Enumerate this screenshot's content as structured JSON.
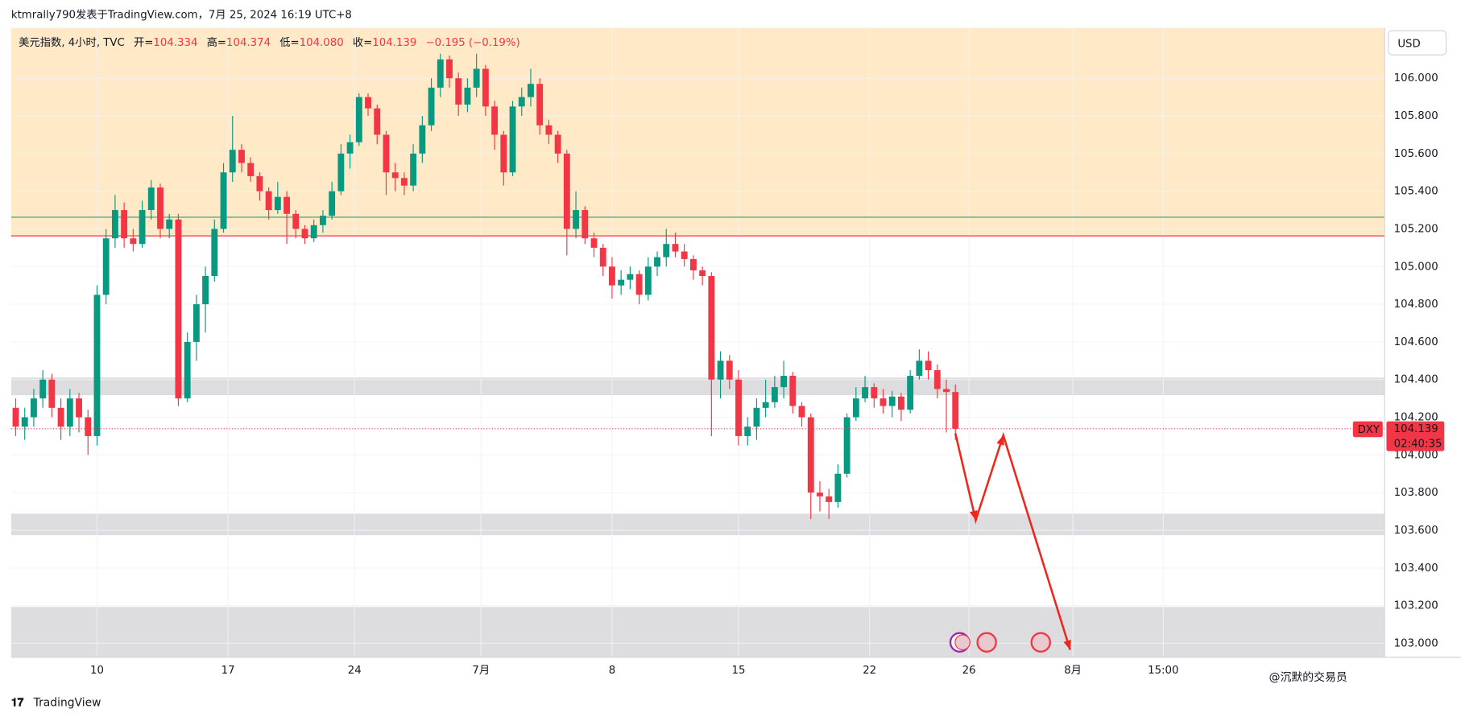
{
  "header": {
    "byline": "ktmrally790发表于TradingView.com，7月 25, 2024 16:19 UTC+8",
    "symbol_info": "美元指数, 4小时, TVC",
    "open_label": "开=",
    "open": "104.334",
    "high_label": "高=",
    "high": "104.374",
    "low_label": "低=",
    "low": "104.080",
    "close_label": "收=",
    "close": "104.139",
    "change": "−0.195 (−0.19%)"
  },
  "footer": {
    "brand": "TradingView",
    "watermark": "@沉默的交易员"
  },
  "chart_data": {
    "type": "candlestick",
    "currency": "USD",
    "up_color": "#089981",
    "down_color": "#f23645",
    "grid": true,
    "xlim": [
      0,
      152
    ],
    "xticks": [
      {
        "value": 9.5,
        "label": "10"
      },
      {
        "value": 24,
        "label": "17"
      },
      {
        "value": 38,
        "label": "24"
      },
      {
        "value": 52,
        "label": "7月"
      },
      {
        "value": 66.5,
        "label": "8"
      },
      {
        "value": 80.5,
        "label": "15"
      },
      {
        "value": 95,
        "label": "22"
      },
      {
        "value": 106,
        "label": "26"
      },
      {
        "value": 117.5,
        "label": "8月"
      },
      {
        "value": 127.5,
        "label": "15:00"
      }
    ],
    "ylim": [
      102.926,
      106.267
    ],
    "yticks": [
      {
        "value": 103,
        "label": "103.000"
      },
      {
        "value": 103.2,
        "label": "103.200"
      },
      {
        "value": 103.4,
        "label": "103.400"
      },
      {
        "value": 103.6,
        "label": "103.600"
      },
      {
        "value": 103.8,
        "label": "103.800"
      },
      {
        "value": 104,
        "label": "104.000"
      },
      {
        "value": 104.2,
        "label": "104.200"
      },
      {
        "value": 104.4,
        "label": "104.400"
      },
      {
        "value": 104.6,
        "label": "104.600"
      },
      {
        "value": 104.8,
        "label": "104.800"
      },
      {
        "value": 105,
        "label": "105.000"
      },
      {
        "value": 105.2,
        "label": "105.200"
      },
      {
        "value": 105.4,
        "label": "105.400"
      },
      {
        "value": 105.6,
        "label": "105.600"
      },
      {
        "value": 105.8,
        "label": "105.800"
      },
      {
        "value": 106,
        "label": "106.000"
      }
    ],
    "zones": [
      {
        "from": 105.163,
        "to": 106.267,
        "color": "#ffe9c6"
      },
      {
        "from": 104.317,
        "to": 104.411,
        "color": "#dddde0"
      },
      {
        "from": 103.574,
        "to": 103.688,
        "color": "#dddde0"
      },
      {
        "from": 102.926,
        "to": 103.193,
        "color": "#dddde0"
      }
    ],
    "hlines": [
      {
        "value": 105.262,
        "color": "#2e9e6a"
      },
      {
        "value": 105.163,
        "color": "#f23645"
      }
    ],
    "arrow": {
      "color": "#f0261b",
      "points": [
        [
          104.5,
          104.114
        ],
        [
          106.75,
          103.653
        ],
        [
          109.8,
          104.104
        ],
        [
          117.2,
          102.965
        ]
      ]
    },
    "price_tag": {
      "symbol": "DXY",
      "price": "104.139",
      "countdown": "02:40:35"
    },
    "candles": [
      [
        104.25,
        104.3,
        104.1,
        104.15
      ],
      [
        104.15,
        104.25,
        104.08,
        104.2
      ],
      [
        104.2,
        104.35,
        104.15,
        104.3
      ],
      [
        104.3,
        104.45,
        104.25,
        104.4
      ],
      [
        104.4,
        104.43,
        104.2,
        104.25
      ],
      [
        104.25,
        104.3,
        104.08,
        104.15
      ],
      [
        104.15,
        104.35,
        104.1,
        104.3
      ],
      [
        104.3,
        104.33,
        104.12,
        104.2
      ],
      [
        104.2,
        104.24,
        104.0,
        104.1
      ],
      [
        104.1,
        104.9,
        104.05,
        104.85
      ],
      [
        104.85,
        105.2,
        104.8,
        105.15
      ],
      [
        105.15,
        105.38,
        105.1,
        105.3
      ],
      [
        105.3,
        105.34,
        105.1,
        105.15
      ],
      [
        105.15,
        105.2,
        105.08,
        105.12
      ],
      [
        105.12,
        105.35,
        105.1,
        105.3
      ],
      [
        105.3,
        105.46,
        105.25,
        105.42
      ],
      [
        105.42,
        105.44,
        105.15,
        105.2
      ],
      [
        105.2,
        105.28,
        105.15,
        105.25
      ],
      [
        105.25,
        105.28,
        104.26,
        104.3
      ],
      [
        104.3,
        104.65,
        104.28,
        104.6
      ],
      [
        104.6,
        104.85,
        104.5,
        104.8
      ],
      [
        104.8,
        105.0,
        104.65,
        104.95
      ],
      [
        104.95,
        105.25,
        104.92,
        105.2
      ],
      [
        105.2,
        105.55,
        105.18,
        105.5
      ],
      [
        105.5,
        105.8,
        105.45,
        105.62
      ],
      [
        105.62,
        105.65,
        105.5,
        105.55
      ],
      [
        105.55,
        105.58,
        105.45,
        105.48
      ],
      [
        105.48,
        105.5,
        105.35,
        105.4
      ],
      [
        105.4,
        105.42,
        105.25,
        105.3
      ],
      [
        105.3,
        105.45,
        105.28,
        105.37
      ],
      [
        105.37,
        105.4,
        105.12,
        105.28
      ],
      [
        105.28,
        105.3,
        105.15,
        105.2
      ],
      [
        105.2,
        105.22,
        105.12,
        105.15
      ],
      [
        105.15,
        105.25,
        105.13,
        105.22
      ],
      [
        105.22,
        105.3,
        105.18,
        105.27
      ],
      [
        105.27,
        105.45,
        105.25,
        105.4
      ],
      [
        105.4,
        105.65,
        105.38,
        105.6
      ],
      [
        105.6,
        105.7,
        105.52,
        105.66
      ],
      [
        105.66,
        105.92,
        105.64,
        105.9
      ],
      [
        105.9,
        105.92,
        105.8,
        105.84
      ],
      [
        105.84,
        105.86,
        105.65,
        105.7
      ],
      [
        105.7,
        105.72,
        105.38,
        105.5
      ],
      [
        105.5,
        105.55,
        105.4,
        105.47
      ],
      [
        105.47,
        105.5,
        105.38,
        105.43
      ],
      [
        105.43,
        105.65,
        105.4,
        105.6
      ],
      [
        105.6,
        105.8,
        105.55,
        105.75
      ],
      [
        105.75,
        106.0,
        105.72,
        105.95
      ],
      [
        105.95,
        106.13,
        105.9,
        106.1
      ],
      [
        106.1,
        106.12,
        105.95,
        106.0
      ],
      [
        106.0,
        106.03,
        105.8,
        105.86
      ],
      [
        105.86,
        106.0,
        105.82,
        105.95
      ],
      [
        105.95,
        106.13,
        105.9,
        106.05
      ],
      [
        106.05,
        106.07,
        105.8,
        105.85
      ],
      [
        105.85,
        105.88,
        105.62,
        105.7
      ],
      [
        105.7,
        105.72,
        105.43,
        105.5
      ],
      [
        105.5,
        105.88,
        105.48,
        105.85
      ],
      [
        105.85,
        105.95,
        105.8,
        105.9
      ],
      [
        105.9,
        106.05,
        105.85,
        105.97
      ],
      [
        105.97,
        106.0,
        105.7,
        105.75
      ],
      [
        105.75,
        105.78,
        105.65,
        105.7
      ],
      [
        105.7,
        105.72,
        105.55,
        105.6
      ],
      [
        105.6,
        105.62,
        105.06,
        105.2
      ],
      [
        105.2,
        105.4,
        105.15,
        105.3
      ],
      [
        105.3,
        105.32,
        105.12,
        105.15
      ],
      [
        105.15,
        105.18,
        105.05,
        105.1
      ],
      [
        105.1,
        105.12,
        104.95,
        105.0
      ],
      [
        105.0,
        105.05,
        104.83,
        104.9
      ],
      [
        104.9,
        104.98,
        104.85,
        104.93
      ],
      [
        104.93,
        105.0,
        104.88,
        104.96
      ],
      [
        104.96,
        104.98,
        104.8,
        104.85
      ],
      [
        104.85,
        105.05,
        104.82,
        105.0
      ],
      [
        105.0,
        105.08,
        104.95,
        105.05
      ],
      [
        105.05,
        105.2,
        105.0,
        105.12
      ],
      [
        105.12,
        105.18,
        105.05,
        105.08
      ],
      [
        105.08,
        105.12,
        105.0,
        105.04
      ],
      [
        105.04,
        105.06,
        104.93,
        104.98
      ],
      [
        104.98,
        105.0,
        104.9,
        104.95
      ],
      [
        104.95,
        104.97,
        104.1,
        104.4
      ],
      [
        104.4,
        104.55,
        104.3,
        104.5
      ],
      [
        104.5,
        104.53,
        104.35,
        104.4
      ],
      [
        104.4,
        104.45,
        104.05,
        104.1
      ],
      [
        104.1,
        104.2,
        104.05,
        104.15
      ],
      [
        104.15,
        104.3,
        104.08,
        104.25
      ],
      [
        104.25,
        104.4,
        104.2,
        104.28
      ],
      [
        104.28,
        104.42,
        104.25,
        104.36
      ],
      [
        104.36,
        104.5,
        104.3,
        104.42
      ],
      [
        104.42,
        104.44,
        104.22,
        104.26
      ],
      [
        104.26,
        104.28,
        104.15,
        104.2
      ],
      [
        104.2,
        104.22,
        103.66,
        103.8
      ],
      [
        103.8,
        103.86,
        103.7,
        103.78
      ],
      [
        103.78,
        103.82,
        103.66,
        103.75
      ],
      [
        103.75,
        103.95,
        103.72,
        103.9
      ],
      [
        103.9,
        104.22,
        103.88,
        104.2
      ],
      [
        104.2,
        104.36,
        104.18,
        104.3
      ],
      [
        104.3,
        104.42,
        104.28,
        104.36
      ],
      [
        104.36,
        104.38,
        104.25,
        104.3
      ],
      [
        104.3,
        104.35,
        104.22,
        104.26
      ],
      [
        104.26,
        104.34,
        104.2,
        104.31
      ],
      [
        104.31,
        104.33,
        104.18,
        104.24
      ],
      [
        104.24,
        104.45,
        104.22,
        104.42
      ],
      [
        104.42,
        104.56,
        104.4,
        104.5
      ],
      [
        104.5,
        104.55,
        104.4,
        104.45
      ],
      [
        104.45,
        104.48,
        104.3,
        104.35
      ],
      [
        104.35,
        104.4,
        104.12,
        104.334
      ],
      [
        104.334,
        104.374,
        104.08,
        104.139
      ]
    ]
  }
}
